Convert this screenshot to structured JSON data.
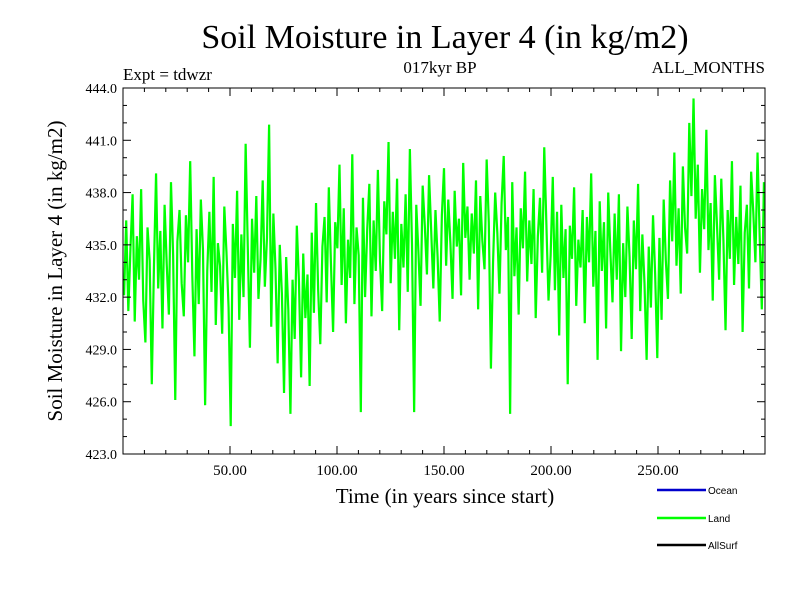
{
  "chart_data": {
    "type": "line",
    "title": "Soil Moisture in Layer 4 (in kg/m2)",
    "subtitle": "017kyr BP",
    "left_label": "Expt = tdwzr",
    "right_label": "ALL_MONTHS",
    "xlabel": "Time (in years since start)",
    "ylabel": "Soil Moisture in Layer 4 (in kg/m2)",
    "xlim": [
      0,
      300
    ],
    "ylim": [
      423.0,
      444.0
    ],
    "x_ticks": [
      50,
      100,
      150,
      200,
      250
    ],
    "x_tick_labels": [
      "50.00",
      "100.00",
      "150.00",
      "200.00",
      "250.00"
    ],
    "y_ticks": [
      423.0,
      426.0,
      429.0,
      432.0,
      435.0,
      438.0,
      441.0,
      444.0
    ],
    "y_tick_labels": [
      "423.0",
      "426.0",
      "429.0",
      "432.0",
      "435.0",
      "438.0",
      "441.0",
      "444.0"
    ],
    "series": [
      {
        "name": "Ocean",
        "color": "#0000cc",
        "values": []
      },
      {
        "name": "Land",
        "color": "#00ff00",
        "mean": 435.0,
        "min": 424.6,
        "max": 443.4,
        "values": [
          432.1,
          436.4,
          431.2,
          434.8,
          437.9,
          430.6,
          435.5,
          433.0,
          438.2,
          431.8,
          429.4,
          436.0,
          434.1,
          427.0,
          433.7,
          439.1,
          432.5,
          435.8,
          430.2,
          437.3,
          433.9,
          431.0,
          438.6,
          434.4,
          426.1,
          435.2,
          437.0,
          432.8,
          430.9,
          436.7,
          434.0,
          439.8,
          433.2,
          428.6,
          435.9,
          431.6,
          437.6,
          434.7,
          425.8,
          433.5,
          436.9,
          432.3,
          438.9,
          430.4,
          435.1,
          433.8,
          429.9,
          437.2,
          434.6,
          431.4,
          424.6,
          436.2,
          433.1,
          438.1,
          430.7,
          435.6,
          432.0,
          440.8,
          434.9,
          429.1,
          436.5,
          433.4,
          437.8,
          431.9,
          434.2,
          438.7,
          432.6,
          435.4,
          441.9,
          430.3,
          436.8,
          433.6,
          428.2,
          435.0,
          432.2,
          426.5,
          434.3,
          431.3,
          425.3,
          433.0,
          429.6,
          436.1,
          432.9,
          427.4,
          434.5,
          430.8,
          433.3,
          426.9,
          435.7,
          431.1,
          437.4,
          432.4,
          429.3,
          434.9,
          436.6,
          431.7,
          438.3,
          433.9,
          430.0,
          436.3,
          434.8,
          439.6,
          432.7,
          437.1,
          430.5,
          435.3,
          433.1,
          440.2,
          431.6,
          436.0,
          434.4,
          425.4,
          437.7,
          432.0,
          435.9,
          438.5,
          430.9,
          436.4,
          433.5,
          439.3,
          434.1,
          431.2,
          437.5,
          435.6,
          440.9,
          432.8,
          436.9,
          434.2,
          438.8,
          430.1,
          436.2,
          433.7,
          437.9,
          432.3,
          440.5,
          435.0,
          425.4,
          437.3,
          434.6,
          431.5,
          438.4,
          436.1,
          433.3,
          439.0,
          435.8,
          432.5,
          437.0,
          434.3,
          430.6,
          436.7,
          439.4,
          433.8,
          437.6,
          435.1,
          431.9,
          438.1,
          434.9,
          436.5,
          432.1,
          439.7,
          435.4,
          437.2,
          433.0,
          436.8,
          434.5,
          438.7,
          431.3,
          437.8,
          435.2,
          433.6,
          439.9,
          436.3,
          427.9,
          434.0,
          438.0,
          435.7,
          432.2,
          437.4,
          440.1,
          434.7,
          436.6,
          425.3,
          438.6,
          433.2,
          436.0,
          431.0,
          437.1,
          434.8,
          439.2,
          432.9,
          436.4,
          433.9,
          438.2,
          430.8,
          435.5,
          437.7,
          433.4,
          440.6,
          436.2,
          431.8,
          434.4,
          438.9,
          432.4,
          436.9,
          429.8,
          437.3,
          433.1,
          435.9,
          427.0,
          436.1,
          434.2,
          438.3,
          431.5,
          435.3,
          433.7,
          437.0,
          430.5,
          436.6,
          434.0,
          439.1,
          432.6,
          435.8,
          428.4,
          437.5,
          433.5,
          436.3,
          430.2,
          438.0,
          434.6,
          431.7,
          436.8,
          433.0,
          437.9,
          428.9,
          435.1,
          432.0,
          437.2,
          434.3,
          429.6,
          436.4,
          433.6,
          438.5,
          431.2,
          435.6,
          432.8,
          428.4,
          434.9,
          431.4,
          436.7,
          433.3,
          428.5,
          435.4,
          430.7,
          437.6,
          434.1,
          431.9,
          438.7,
          435.2,
          440.3,
          433.8,
          437.1,
          432.2,
          439.5,
          436.0,
          434.5,
          442.0,
          437.8,
          443.4,
          436.5,
          439.6,
          433.4,
          438.2,
          435.9,
          441.6,
          434.7,
          437.4,
          431.8,
          439.0,
          436.1,
          433.0,
          438.8,
          435.3,
          430.1,
          437.0,
          434.2,
          439.8,
          432.7,
          436.6,
          433.9,
          438.4,
          430.0,
          435.7,
          437.3,
          432.5,
          439.2,
          436.9,
          434.0,
          440.3,
          435.5,
          431.3,
          438.6
        ]
      },
      {
        "name": "AllSurf",
        "color": "#000000",
        "values": []
      }
    ],
    "legend_position": "bottom-right"
  }
}
